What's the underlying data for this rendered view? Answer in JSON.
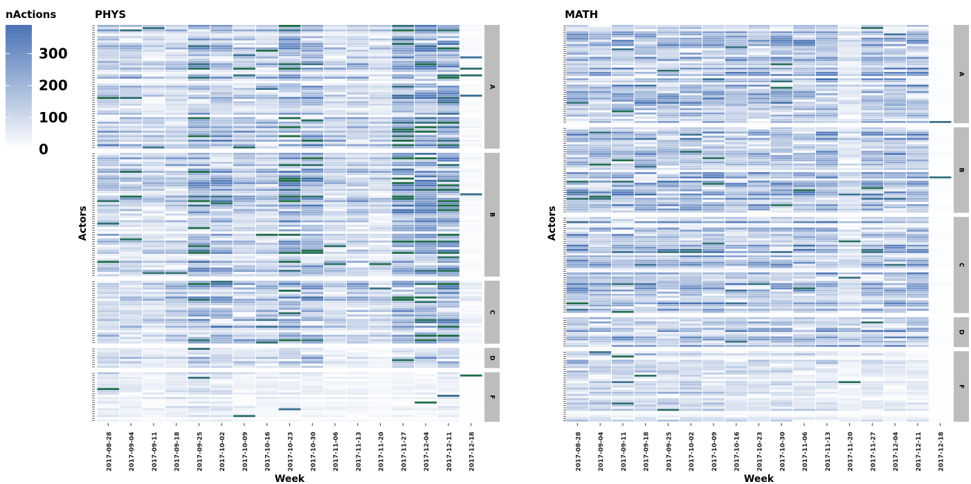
{
  "legend": {
    "title": "nActions",
    "ticks": [
      0,
      100,
      200,
      300
    ],
    "max": 390,
    "colors": {
      "low": "#ffffff",
      "mid": "#4a73b6",
      "high": "#1e6b47"
    }
  },
  "chart_data": {
    "type": "heatmap",
    "x_label": "Week",
    "y_label": "Actors",
    "weeks": [
      "2017-08-28",
      "2017-09-04",
      "2017-09-11",
      "2017-09-18",
      "2017-09-25",
      "2017-10-02",
      "2017-10-09",
      "2017-10-16",
      "2017-10-23",
      "2017-10-30",
      "2017-11-06",
      "2017-11-13",
      "2017-11-20",
      "2017-11-27",
      "2017-12-04",
      "2017-12-11",
      "2017-12-18"
    ],
    "value_range": [
      0,
      390
    ],
    "panels": [
      {
        "title": "PHYS",
        "groups": [
          {
            "label": "A",
            "actors": 55,
            "week_intensity": [
              0.45,
              0.4,
              0.3,
              0.35,
              0.65,
              0.5,
              0.4,
              0.4,
              0.8,
              0.6,
              0.35,
              0.4,
              0.3,
              0.75,
              0.85,
              0.9,
              0.05
            ]
          },
          {
            "label": "B",
            "actors": 55,
            "week_intensity": [
              0.45,
              0.4,
              0.3,
              0.35,
              0.65,
              0.55,
              0.4,
              0.4,
              0.8,
              0.6,
              0.35,
              0.4,
              0.3,
              0.75,
              0.85,
              0.9,
              0.05
            ]
          },
          {
            "label": "C",
            "actors": 28,
            "week_intensity": [
              0.4,
              0.35,
              0.3,
              0.4,
              0.6,
              0.55,
              0.4,
              0.45,
              0.75,
              0.55,
              0.3,
              0.4,
              0.3,
              0.7,
              0.8,
              0.85,
              0.1
            ]
          },
          {
            "label": "D",
            "actors": 9,
            "week_intensity": [
              0.3,
              0.3,
              0.2,
              0.25,
              0.4,
              0.35,
              0.3,
              0.25,
              0.45,
              0.4,
              0.15,
              0.15,
              0.1,
              0.35,
              0.4,
              0.45,
              0.02
            ]
          },
          {
            "label": "F",
            "actors": 22,
            "week_intensity": [
              0.2,
              0.15,
              0.12,
              0.15,
              0.22,
              0.18,
              0.12,
              0.12,
              0.15,
              0.12,
              0.08,
              0.08,
              0.05,
              0.1,
              0.1,
              0.12,
              0.01
            ]
          }
        ]
      },
      {
        "title": "MATH",
        "groups": [
          {
            "label": "A",
            "actors": 46,
            "week_intensity": [
              0.5,
              0.45,
              0.5,
              0.5,
              0.5,
              0.5,
              0.5,
              0.5,
              0.5,
              0.5,
              0.5,
              0.5,
              0.2,
              0.5,
              0.5,
              0.5,
              0.02
            ]
          },
          {
            "label": "B",
            "actors": 40,
            "week_intensity": [
              0.6,
              0.55,
              0.55,
              0.55,
              0.55,
              0.55,
              0.55,
              0.5,
              0.55,
              0.55,
              0.5,
              0.55,
              0.25,
              0.55,
              0.55,
              0.55,
              0.02
            ]
          },
          {
            "label": "C",
            "actors": 45,
            "week_intensity": [
              0.6,
              0.55,
              0.55,
              0.55,
              0.55,
              0.55,
              0.55,
              0.5,
              0.55,
              0.55,
              0.55,
              0.55,
              0.25,
              0.55,
              0.55,
              0.55,
              0.02
            ]
          },
          {
            "label": "D",
            "actors": 14,
            "week_intensity": [
              0.5,
              0.45,
              0.45,
              0.45,
              0.45,
              0.45,
              0.45,
              0.45,
              0.45,
              0.45,
              0.45,
              0.45,
              0.4,
              0.45,
              0.45,
              0.45,
              0.02
            ]
          },
          {
            "label": "F",
            "actors": 33,
            "week_intensity": [
              0.35,
              0.3,
              0.3,
              0.3,
              0.3,
              0.3,
              0.3,
              0.25,
              0.25,
              0.25,
              0.25,
              0.25,
              0.12,
              0.2,
              0.15,
              0.15,
              0.01
            ]
          }
        ]
      }
    ]
  }
}
